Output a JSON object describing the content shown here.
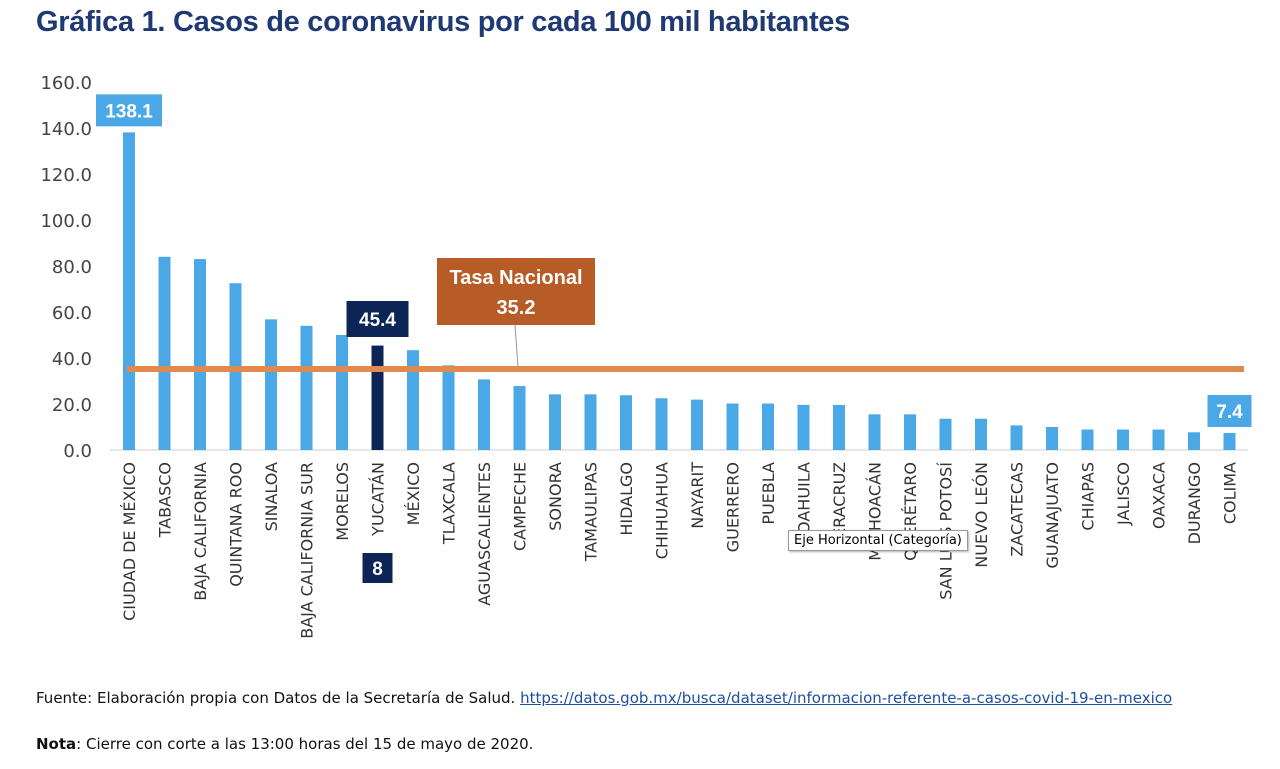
{
  "title": "Gráfica 1. Casos de coronavirus por cada 100 mil habitantes",
  "chart_data": {
    "type": "bar",
    "title": "Gráfica 1. Casos de coronavirus por cada 100 mil habitantes",
    "xlabel": "",
    "ylabel": "",
    "ylim": [
      0,
      160
    ],
    "yticks": [
      "0.0",
      "20.0",
      "40.0",
      "60.0",
      "80.0",
      "100.0",
      "120.0",
      "140.0",
      "160.0"
    ],
    "grid": false,
    "categories": [
      "CIUDAD DE MÉXICO",
      "TABASCO",
      "BAJA CALIFORNIA",
      "QUINTANA ROO",
      "SINALOA",
      "BAJA CALIFORNIA SUR",
      "MORELOS",
      "YUCATÁN",
      "MÉXICO",
      "TLAXCALA",
      "AGUASCALIENTES",
      "CAMPECHE",
      "SONORA",
      "TAMAULIPAS",
      "HIDALGO",
      "CHIHUAHUA",
      "NAYARIT",
      "GUERRERO",
      "PUEBLA",
      "COAHUILA",
      "VERACRUZ",
      "MICHOACÁN",
      "QUERÉTARO",
      "SAN LUIS POTOSÍ",
      "NUEVO LEÓN",
      "ZACATECAS",
      "GUANAJUATO",
      "CHIAPAS",
      "JALISCO",
      "OAXACA",
      "DURANGO",
      "COLIMA"
    ],
    "values": [
      138.1,
      84.0,
      83.0,
      72.5,
      56.8,
      54.0,
      50.0,
      45.4,
      43.4,
      36.8,
      30.7,
      27.8,
      24.2,
      24.2,
      23.8,
      22.5,
      21.9,
      20.2,
      20.2,
      19.6,
      19.6,
      15.5,
      15.5,
      13.6,
      13.6,
      10.7,
      10.0,
      8.9,
      8.9,
      8.9,
      7.7,
      7.4
    ],
    "highlight": {
      "category": "YUCATÁN",
      "value_label": "45.4",
      "rank_label": "8",
      "color": "#0d2456"
    },
    "data_labels": [
      {
        "category": "CIUDAD DE MÉXICO",
        "label": "138.1"
      },
      {
        "category": "COLIMA",
        "label": "7.4"
      }
    ],
    "reference_line": {
      "label": "Tasa Nacional",
      "value_label": "35.2",
      "value": 35.2,
      "color": "#e08a4f",
      "label_bg": "#b85c27"
    },
    "bar_color": "#4aa8e6"
  },
  "tooltip": "Eje Horizontal (Categoría)",
  "footer": {
    "source_prefix": "Fuente: Elaboración propia con Datos de la Secretaría de Salud. ",
    "source_link": "https://datos.gob.mx/busca/dataset/informacion-referente-a-casos-covid-19-en-mexico",
    "note_label": "Nota",
    "note_text": ": Cierre con corte a las 13:00 horas del 15 de mayo de 2020."
  }
}
